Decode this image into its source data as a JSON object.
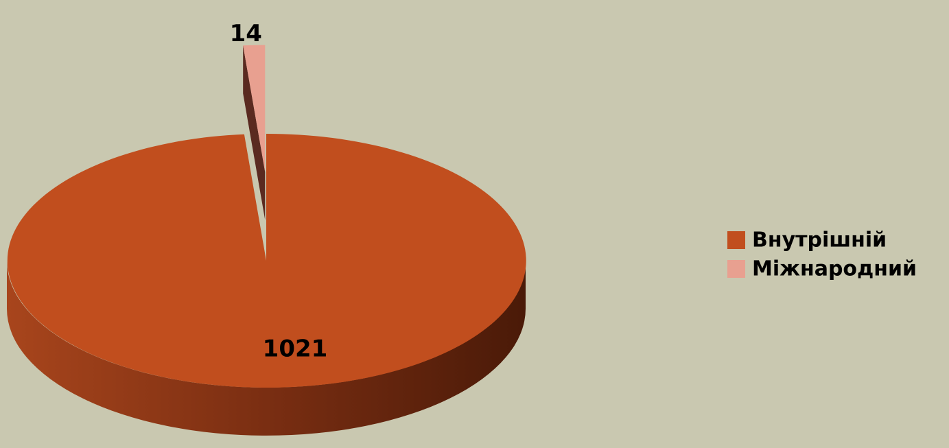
{
  "chart_data": {
    "type": "pie",
    "categories": [
      "Внутрішній",
      "Міжнародний"
    ],
    "values": [
      1021,
      14
    ],
    "colors": [
      "#C14E1E",
      "#E8A090"
    ],
    "legend": "right"
  }
}
